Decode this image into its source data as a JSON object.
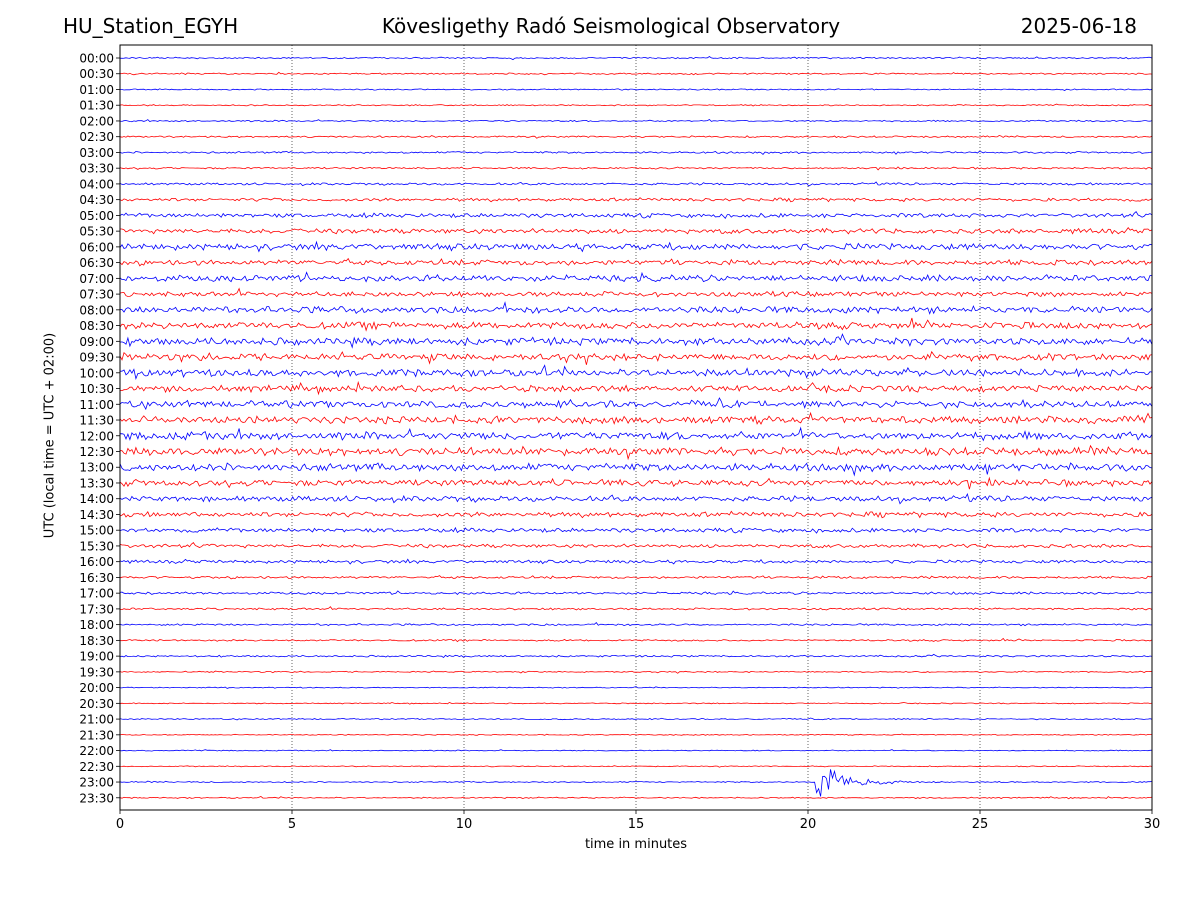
{
  "header": {
    "station": "HU_Station_EGYH",
    "title": "Kövesligethy Radó Seismological Observatory",
    "date": "2025-06-18"
  },
  "chart_data": {
    "type": "line",
    "xlabel": "time in minutes",
    "ylabel": "UTC (local time = UTC + 02:00)",
    "xlim": [
      0,
      30
    ],
    "xticks": [
      0,
      5,
      10,
      15,
      20,
      25,
      30
    ],
    "grid": "vertical dotted lines at 5-minute intervals",
    "series_colors": [
      "#0000ff",
      "#ff0000"
    ],
    "row_labels": [
      "00:00",
      "00:30",
      "01:00",
      "01:30",
      "02:00",
      "02:30",
      "03:00",
      "03:30",
      "04:00",
      "04:30",
      "05:00",
      "05:30",
      "06:00",
      "06:30",
      "07:00",
      "07:30",
      "08:00",
      "08:30",
      "09:00",
      "09:30",
      "10:00",
      "10:30",
      "11:00",
      "11:30",
      "12:00",
      "12:30",
      "13:00",
      "13:30",
      "14:00",
      "14:30",
      "15:00",
      "15:30",
      "16:00",
      "16:30",
      "17:00",
      "17:30",
      "18:00",
      "18:30",
      "19:00",
      "19:30",
      "20:00",
      "20:30",
      "21:00",
      "21:30",
      "22:00",
      "22:30",
      "23:00",
      "23:30"
    ],
    "noise_level": [
      0.6,
      0.6,
      0.5,
      0.5,
      0.6,
      0.7,
      0.8,
      0.7,
      0.9,
      1.3,
      1.7,
      2.0,
      2.6,
      2.2,
      2.6,
      2.0,
      2.8,
      2.8,
      3.0,
      2.8,
      3.0,
      2.6,
      2.8,
      3.0,
      3.2,
      3.2,
      3.2,
      2.6,
      2.2,
      2.0,
      1.7,
      1.5,
      1.3,
      1.0,
      1.0,
      0.8,
      0.8,
      0.7,
      0.7,
      0.5,
      0.4,
      0.4,
      0.5,
      0.4,
      0.4,
      0.4,
      0.5,
      0.5
    ],
    "events": [
      {
        "row": "23:00",
        "start_minute": 20.25,
        "end_minute": 25.5,
        "peak_amplitude": 24
      }
    ]
  }
}
